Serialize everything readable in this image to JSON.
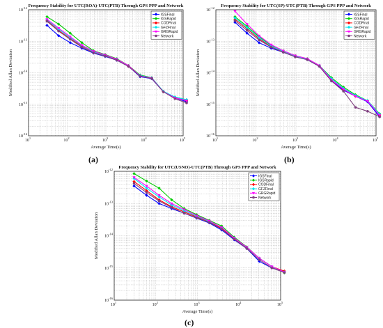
{
  "figure": {
    "panel_labels": [
      "(a)",
      "(b)",
      "(c)"
    ]
  },
  "chart_data": [
    {
      "type": "line",
      "title": "Frequency Stability for UTC(ROA)-UTC(PTB) Through GPS PPP and Network",
      "xlabel": "Average Time(s)",
      "ylabel": "Modified Allan Deviation",
      "xscale": "log",
      "yscale": "log",
      "xlim": [
        10,
        100000
      ],
      "ylim": [
        1e-16,
        1e-12
      ],
      "xticks": [
        "10^1",
        "10^2",
        "10^3",
        "10^4",
        "10^5"
      ],
      "yticks": [
        "10^-16",
        "10^-15",
        "10^-14",
        "10^-13",
        "10^-12"
      ],
      "grid": true,
      "legend_position": "top-right",
      "series": [
        {
          "name": "IGSFinal",
          "color": "#0000ff",
          "marker": "diamond",
          "x": [
            30,
            60,
            120,
            240,
            480,
            960,
            1920,
            3840,
            7680,
            15360,
            30720,
            61440,
            122880
          ],
          "y": [
            3.2e-13,
            1.5e-13,
            9e-14,
            6e-14,
            4.2e-14,
            3.3e-14,
            2.5e-14,
            1.6e-14,
            7.5e-15,
            6.5e-15,
            2.5e-15,
            1.6e-15,
            1.2e-15
          ]
        },
        {
          "name": "IGSRapid",
          "color": "#00cc00",
          "marker": "diamond",
          "x": [
            30,
            60,
            120,
            240,
            480,
            960,
            1920,
            3840,
            7680,
            15360,
            30720,
            61440,
            122880
          ],
          "y": [
            6e-13,
            3.5e-13,
            1.8e-13,
            9e-14,
            5e-14,
            3.8e-14,
            2.8e-14,
            1.7e-14,
            8.5e-15,
            7e-15,
            2.5e-15,
            1.7e-15,
            1.4e-15
          ]
        },
        {
          "name": "CODFinal",
          "color": "#ff0000",
          "marker": "diamond",
          "x": [
            30,
            60,
            120,
            240,
            480,
            960,
            1920,
            3840,
            7680,
            15360,
            30720,
            61440,
            122880
          ],
          "y": [
            4.5e-13,
            2.2e-13,
            1.2e-13,
            7e-14,
            4.5e-14,
            3.5e-14,
            2.6e-14,
            1.6e-14,
            8e-15,
            6.8e-15,
            2.5e-15,
            1.6e-15,
            1.3e-15
          ]
        },
        {
          "name": "GFZFinal",
          "color": "#00e5ee",
          "marker": "diamond",
          "x": [
            30,
            60,
            120,
            240,
            480,
            960,
            1920,
            3840,
            7680,
            15360,
            30720,
            61440,
            122880
          ],
          "y": [
            4.8e-13,
            2.4e-13,
            1.3e-13,
            7.2e-14,
            4.6e-14,
            3.6e-14,
            2.7e-14,
            1.65e-14,
            8.2e-15,
            6.9e-15,
            2.6e-15,
            1.7e-15,
            1.4e-15
          ]
        },
        {
          "name": "GRGRapid",
          "color": "#ff00ff",
          "marker": "triangle",
          "x": [
            30,
            60,
            120,
            240,
            480,
            960,
            1920,
            3840,
            7680,
            15360,
            30720,
            61440,
            122880
          ],
          "y": [
            5e-13,
            2.6e-13,
            1.4e-13,
            7.5e-14,
            4.8e-14,
            3.7e-14,
            2.7e-14,
            1.7e-14,
            8e-15,
            6.8e-15,
            2.5e-15,
            1.6e-15,
            1.3e-15
          ]
        },
        {
          "name": "Network",
          "color": "#7f3f7f",
          "marker": "circle",
          "x": [
            30,
            60,
            120,
            240,
            480,
            960,
            1920,
            3840,
            7680,
            15360,
            30720,
            61440,
            122880
          ],
          "y": [
            4.3e-13,
            2.1e-13,
            1.15e-13,
            6.5e-14,
            4.3e-14,
            3.4e-14,
            2.5e-14,
            1.6e-14,
            7.8e-15,
            6.6e-15,
            2.5e-15,
            1.5e-15,
            1.1e-15
          ]
        }
      ]
    },
    {
      "type": "line",
      "title": "Frequency Stability for UTC(SP)-UTC(PTB) Through GPS PPP and Network",
      "xlabel": "Average Time(s)",
      "ylabel": "Modified Allan Deviation",
      "xscale": "log",
      "yscale": "log",
      "xlim": [
        10,
        100000
      ],
      "ylim": [
        1e-16,
        1e-12
      ],
      "xticks": [
        "10^1",
        "10^2",
        "10^3",
        "10^4",
        "10^5"
      ],
      "yticks": [
        "10^-16",
        "10^-15",
        "10^-14",
        "10^-13",
        "10^-12"
      ],
      "grid": true,
      "legend_position": "top-right",
      "series": [
        {
          "name": "IGSFinal",
          "color": "#0000ff",
          "marker": "diamond",
          "x": [
            30,
            60,
            120,
            240,
            480,
            960,
            1920,
            3840,
            7680,
            15360,
            30720,
            61440,
            122880
          ],
          "y": [
            4e-13,
            1.8e-13,
            9e-14,
            6e-14,
            4.5e-14,
            3.2e-14,
            2.6e-14,
            1.6e-14,
            5.5e-15,
            2.8e-15,
            1.8e-15,
            1.2e-15,
            4e-16
          ]
        },
        {
          "name": "IGSRapid",
          "color": "#00cc00",
          "marker": "diamond",
          "x": [
            30,
            60,
            120,
            240,
            480,
            960,
            1920,
            3840,
            7680,
            15360,
            30720,
            61440,
            122880
          ],
          "y": [
            6e-13,
            3e-13,
            1.4e-13,
            7.5e-14,
            5e-14,
            3.5e-14,
            2.8e-14,
            1.7e-14,
            7e-15,
            3.5e-15,
            2e-15,
            1.3e-15,
            5e-16
          ]
        },
        {
          "name": "CODFinal",
          "color": "#ff0000",
          "marker": "diamond",
          "x": [
            30,
            60,
            120,
            240,
            480,
            960,
            1920,
            3840,
            7680,
            15360,
            30720,
            61440,
            122880
          ],
          "y": [
            5e-13,
            2.5e-13,
            1.2e-13,
            6.8e-14,
            4.7e-14,
            3.3e-14,
            2.7e-14,
            1.65e-14,
            6e-15,
            3e-15,
            1.8e-15,
            1.3e-15,
            4.5e-16
          ]
        },
        {
          "name": "GFZFinal",
          "color": "#00e5ee",
          "marker": "diamond",
          "x": [
            30,
            60,
            120,
            240,
            480,
            960,
            1920,
            3840,
            7680,
            15360,
            30720,
            61440,
            122880
          ],
          "y": [
            5.5e-13,
            2.7e-13,
            1.3e-13,
            7e-14,
            4.8e-14,
            3.4e-14,
            2.7e-14,
            1.7e-14,
            6.5e-15,
            3.2e-15,
            1.9e-15,
            1.3e-15,
            4.8e-16
          ]
        },
        {
          "name": "GRGRapid",
          "color": "#ff00ff",
          "marker": "triangle",
          "x": [
            30,
            60,
            120,
            240,
            480,
            960,
            1920,
            3840,
            7680,
            15360,
            30720,
            61440,
            122880
          ],
          "y": [
            9e-13,
            3.5e-13,
            1.5e-13,
            7.8e-14,
            5e-14,
            3.5e-14,
            2.8e-14,
            1.7e-14,
            6e-15,
            3e-15,
            1.8e-15,
            1.25e-15,
            4.5e-16
          ]
        },
        {
          "name": "Network",
          "color": "#7f3f7f",
          "marker": "circle",
          "x": [
            30,
            60,
            120,
            240,
            480,
            960,
            1920,
            3840,
            7680,
            15360,
            30720,
            61440,
            122880
          ],
          "y": [
            4.5e-13,
            2.2e-13,
            1.1e-13,
            6.5e-14,
            4.5e-14,
            3.2e-14,
            2.6e-14,
            1.6e-14,
            5.5e-15,
            2.6e-15,
            8e-16,
            6e-16,
            4e-16
          ]
        }
      ]
    },
    {
      "type": "line",
      "title": "Frequency Stability for UTC(USNO)-UTC(PTB) Through GPS PPP and Network",
      "xlabel": "Average Time(s)",
      "ylabel": "Modified Allan Deviation",
      "xscale": "log",
      "yscale": "log",
      "xlim": [
        10,
        100000
      ],
      "ylim": [
        1e-16,
        1e-12
      ],
      "xticks": [
        "10^1",
        "10^2",
        "10^3",
        "10^4",
        "10^5"
      ],
      "yticks": [
        "10^-16",
        "10^-15",
        "10^-14",
        "10^-13",
        "10^-12"
      ],
      "grid": true,
      "legend_position": "top-right",
      "series": [
        {
          "name": "IGSFinal",
          "color": "#0000ff",
          "marker": "diamond",
          "x": [
            30,
            60,
            120,
            240,
            480,
            960,
            1920,
            3840,
            7680,
            15360,
            30720,
            61440,
            122880
          ],
          "y": [
            3.5e-13,
            1.8e-13,
            1e-13,
            7e-14,
            5e-14,
            3.5e-14,
            2.5e-14,
            1.5e-14,
            7.5e-15,
            4e-15,
            1.6e-15,
            1e-15,
            7.5e-16
          ]
        },
        {
          "name": "IGSRapid",
          "color": "#00cc00",
          "marker": "diamond",
          "x": [
            30,
            60,
            120,
            240,
            480,
            960,
            1920,
            3840,
            7680,
            15360,
            30720,
            61440,
            122880
          ],
          "y": [
            8.5e-13,
            5e-13,
            3e-13,
            1.3e-13,
            7e-14,
            4.5e-14,
            3e-14,
            2e-14,
            9e-15,
            4.5e-15,
            2e-15,
            1.1e-15,
            7e-16
          ]
        },
        {
          "name": "CODFinal",
          "color": "#ff0000",
          "marker": "diamond",
          "x": [
            30,
            60,
            120,
            240,
            480,
            960,
            1920,
            3840,
            7680,
            15360,
            30720,
            61440,
            122880
          ],
          "y": [
            4.8e-13,
            2.5e-13,
            1.3e-13,
            8e-14,
            5.5e-14,
            3.8e-14,
            2.7e-14,
            1.7e-14,
            8e-15,
            4.2e-15,
            2e-15,
            1.1e-15,
            8e-16
          ]
        },
        {
          "name": "GFZFinal",
          "color": "#00e5ee",
          "marker": "diamond",
          "x": [
            30,
            60,
            120,
            240,
            480,
            960,
            1920,
            3840,
            7680,
            15360,
            30720,
            61440,
            122880
          ],
          "y": [
            6e-13,
            3e-13,
            1.6e-13,
            9e-14,
            6e-14,
            4e-14,
            2.8e-14,
            1.8e-14,
            8.5e-15,
            4.3e-15,
            2e-15,
            1.1e-15,
            7.5e-16
          ]
        },
        {
          "name": "GRGRapid",
          "color": "#ff00ff",
          "marker": "triangle",
          "x": [
            30,
            60,
            120,
            240,
            480,
            960,
            1920,
            3840,
            7680,
            15360,
            30720,
            61440,
            122880
          ],
          "y": [
            6.5e-13,
            3.5e-13,
            1.8e-13,
            1e-13,
            6.5e-14,
            4.2e-14,
            2.9e-14,
            1.8e-14,
            8.5e-15,
            4.4e-15,
            2e-15,
            1.1e-15,
            7.5e-16
          ]
        },
        {
          "name": "Network",
          "color": "#7f3f7f",
          "marker": "circle",
          "x": [
            30,
            60,
            120,
            240,
            480,
            960,
            1920,
            3840,
            7680,
            15360,
            30720,
            61440,
            122880
          ],
          "y": [
            4.2e-13,
            2.2e-13,
            1.2e-13,
            7.5e-14,
            5e-14,
            3.6e-14,
            2.6e-14,
            1.6e-14,
            7.8e-15,
            4e-15,
            1.8e-15,
            1e-15,
            7.2e-16
          ]
        }
      ]
    }
  ]
}
